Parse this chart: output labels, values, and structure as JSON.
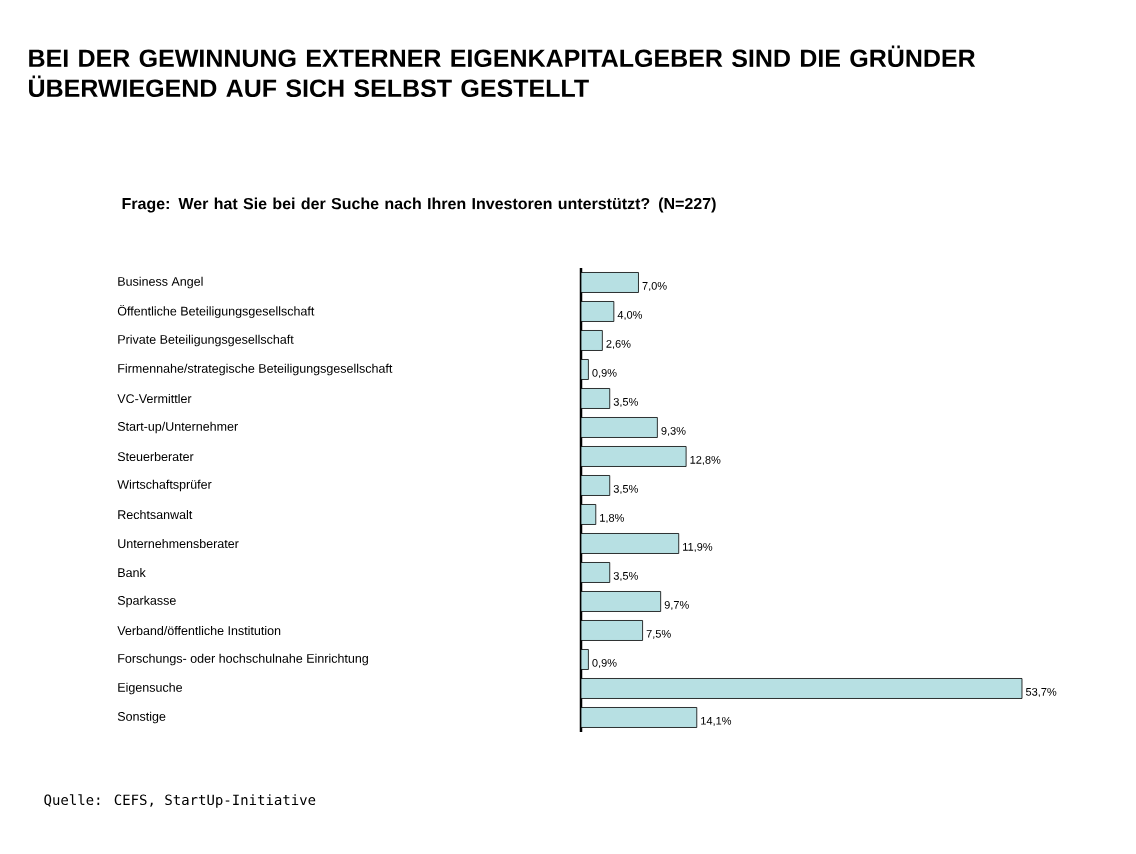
{
  "chart_data": {
    "type": "bar",
    "orientation": "horizontal",
    "title": "BEI DER GEWINNUNG EXTERNER EIGENKAPITALGEBER SIND DIE GRÜNDER ÜBERWIEGEND AUF SICH SELBST GESTELLT",
    "subtitle": "Frage: Wer hat Sie bei der Suche nach Ihren Investoren unterstützt? (N=227)",
    "categories": [
      "Business Angel",
      "Öffentliche Beteiligungsgesellschaft",
      "Private Beteiligungsgesellschaft",
      "Firmennahe/strategische Beteiligungsgesellschaft",
      "VC-Vermittler",
      "Start-up/Unternehmer",
      "Steuerberater",
      "Wirtschaftsprüfer",
      "Rechtsanwalt",
      "Unternehmensberater",
      "Bank",
      "Sparkasse",
      "Verband/öffentliche Institution",
      "Forschungs- oder hochschulnahe Einrichtung",
      "Eigensuche",
      "Sonstige"
    ],
    "values": [
      7.0,
      4.0,
      2.6,
      0.9,
      3.5,
      9.3,
      12.8,
      3.5,
      1.8,
      11.9,
      3.5,
      9.7,
      7.5,
      0.9,
      53.7,
      14.1
    ],
    "value_labels": [
      "7,0%",
      "4,0%",
      "2,6%",
      "0,9%",
      "3,5%",
      "9,3%",
      "12,8%",
      "3,5%",
      "1,8%",
      "11,9%",
      "3,5%",
      "9,7%",
      "7,5%",
      "0,9%",
      "53,7%",
      "14,1%"
    ],
    "color": "#b7e0e3",
    "annotations": [
      "Quelle: CEFS, StartUp-Initiative"
    ]
  }
}
